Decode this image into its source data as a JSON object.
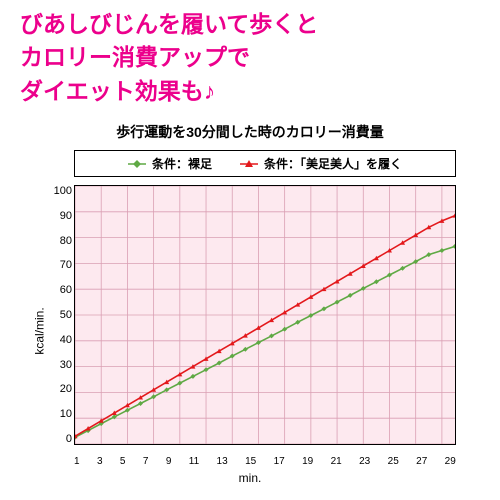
{
  "headline": {
    "lines": [
      "びあしびじんを履いて歩くと",
      "カロリー消費アップで",
      "ダイエット効果も♪"
    ],
    "color": "#ec008c",
    "fontsize": 23
  },
  "chart": {
    "type": "line",
    "title": "歩行運動を30分間した時のカロリー消費量",
    "title_fontsize": 14,
    "title_color": "#000000",
    "legend_fontsize": 12,
    "legend_border": "#000000",
    "plot_bg": "#fde9ef",
    "grid_color": "#da9fb3",
    "axis_color": "#000000",
    "xlabel": "min.",
    "ylabel": "kcal/min.",
    "label_fontsize": 12,
    "tick_fontsize": 11,
    "xlim": [
      1,
      30
    ],
    "xtick_step": 2,
    "ylim": [
      0,
      100
    ],
    "ytick_step": 10,
    "line_width": 1.6,
    "marker_size": 5,
    "series": [
      {
        "name": "条件：裸足",
        "label": "条件：裸足",
        "color": "#5fa944",
        "marker": "diamond",
        "x": [
          1,
          2,
          3,
          4,
          5,
          6,
          7,
          8,
          9,
          10,
          11,
          12,
          13,
          14,
          15,
          16,
          17,
          18,
          19,
          20,
          21,
          22,
          23,
          24,
          25,
          26,
          27,
          28,
          29,
          30
        ],
        "y": [
          2.6,
          5.2,
          7.9,
          10.5,
          13.1,
          15.7,
          18.3,
          21.0,
          23.6,
          26.2,
          28.8,
          31.4,
          34.1,
          36.7,
          39.3,
          41.9,
          44.5,
          47.2,
          49.8,
          52.4,
          55.0,
          57.6,
          60.3,
          62.9,
          65.5,
          68.1,
          70.7,
          73.4,
          75.0,
          76.6
        ]
      },
      {
        "name": "条件：「美足美人」を履く",
        "label": "条件：「美足美人」を履く",
        "color": "#e3191c",
        "marker": "triangle",
        "x": [
          1,
          2,
          3,
          4,
          5,
          6,
          7,
          8,
          9,
          10,
          11,
          12,
          13,
          14,
          15,
          16,
          17,
          18,
          19,
          20,
          21,
          22,
          23,
          24,
          25,
          26,
          27,
          28,
          29,
          30
        ],
        "y": [
          3.0,
          6.0,
          9.0,
          12.0,
          15.0,
          18.0,
          21.0,
          24.0,
          27.0,
          30.0,
          33.0,
          36.0,
          39.0,
          42.0,
          45.0,
          48.0,
          51.0,
          54.0,
          57.0,
          60.0,
          63.0,
          66.0,
          69.0,
          72.0,
          75.0,
          78.0,
          81.0,
          84.0,
          86.5,
          88.5
        ]
      }
    ]
  }
}
